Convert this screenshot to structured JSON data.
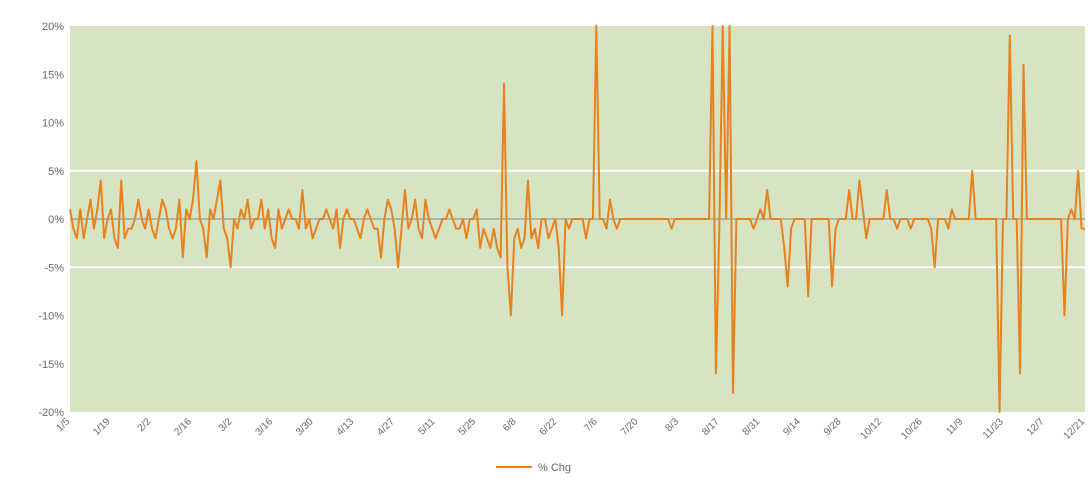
{
  "chart_data": {
    "type": "line",
    "title": "",
    "xlabel": "",
    "ylabel": "",
    "ylim": [
      -20,
      20
    ],
    "y_ticks": [
      {
        "value": 20,
        "label": "20%"
      },
      {
        "value": 15,
        "label": "15%"
      },
      {
        "value": 10,
        "label": "10%"
      },
      {
        "value": 5,
        "label": "5%"
      },
      {
        "value": 0,
        "label": "0%"
      },
      {
        "value": -5,
        "label": "-5%"
      },
      {
        "value": -10,
        "label": "-10%"
      },
      {
        "value": -15,
        "label": "-15%"
      },
      {
        "value": -20,
        "label": "-20%"
      }
    ],
    "x_ticks": [
      "1/5",
      "1/19",
      "2/2",
      "2/16",
      "3/2",
      "3/16",
      "3/30",
      "4/13",
      "4/27",
      "5/11",
      "5/25",
      "6/8",
      "6/22",
      "7/6",
      "7/20",
      "8/3",
      "8/17",
      "8/31",
      "9/14",
      "9/28",
      "10/12",
      "10/26",
      "11/9",
      "11/23",
      "12/7",
      "12/21"
    ],
    "grid_lines_at": [
      5,
      -5
    ],
    "background_color": "#d6e4c4",
    "series": [
      {
        "name": "% Chg",
        "color": "#e8821e",
        "values": [
          1,
          -1,
          -2,
          1,
          -2,
          0,
          2,
          -1,
          1,
          4,
          -2,
          0,
          1,
          -2,
          -3,
          4,
          -2,
          -1,
          -1,
          0,
          2,
          0,
          -1,
          1,
          -1,
          -2,
          0,
          2,
          1,
          -1,
          -2,
          -1,
          2,
          -4,
          1,
          0,
          2,
          6,
          0,
          -1,
          -4,
          1,
          0,
          2,
          4,
          -1,
          -2,
          -5,
          0,
          -1,
          1,
          0,
          2,
          -1,
          0,
          0,
          2,
          -1,
          1,
          -2,
          -3,
          1,
          -1,
          0,
          1,
          0,
          0,
          -1,
          3,
          -1,
          0,
          -2,
          -1,
          0,
          0,
          1,
          0,
          -1,
          1,
          -3,
          0,
          1,
          0,
          0,
          -1,
          -2,
          0,
          1,
          0,
          -1,
          -1,
          -4,
          0,
          2,
          1,
          -1,
          -5,
          -1,
          3,
          -1,
          0,
          2,
          -1,
          -2,
          2,
          0,
          -1,
          -2,
          -1,
          0,
          0,
          1,
          0,
          -1,
          -1,
          0,
          -2,
          0,
          0,
          1,
          -3,
          -1,
          -2,
          -3,
          -1,
          -3,
          -4,
          14,
          -5,
          -10,
          -2,
          -1,
          -3,
          -2,
          4,
          -2,
          -1,
          -3,
          0,
          0,
          -2,
          -1,
          0,
          -3,
          -10,
          0,
          -1,
          0,
          0,
          0,
          0,
          -2,
          0,
          0,
          20,
          0,
          0,
          -1,
          2,
          0,
          -1,
          0,
          0,
          0,
          0,
          0,
          0,
          0,
          0,
          0,
          0,
          0,
          0,
          0,
          0,
          0,
          -1,
          0,
          0,
          0,
          0,
          0,
          0,
          0,
          0,
          0,
          0,
          0,
          20,
          -16,
          -1,
          20,
          0,
          20,
          -18,
          0,
          0,
          0,
          0,
          0,
          -1,
          0,
          1,
          0,
          3,
          0,
          0,
          0,
          0,
          -3,
          -7,
          -1,
          0,
          0,
          0,
          0,
          -8,
          0,
          0,
          0,
          0,
          0,
          0,
          -7,
          -1,
          0,
          0,
          0,
          3,
          0,
          0,
          4,
          1,
          -2,
          0,
          0,
          0,
          0,
          0,
          3,
          0,
          0,
          -1,
          0,
          0,
          0,
          -1,
          0,
          0,
          0,
          0,
          0,
          -1,
          -5,
          0,
          0,
          0,
          -1,
          1,
          0,
          0,
          0,
          0,
          0,
          5,
          0,
          0,
          0,
          0,
          0,
          0,
          0,
          -20,
          0,
          0,
          19,
          0,
          0,
          -16,
          16,
          0,
          0,
          0,
          0,
          0,
          0,
          0,
          0,
          0,
          0,
          0,
          -10,
          0,
          1,
          0,
          5,
          -1,
          -1
        ]
      }
    ],
    "legend": {
      "position": "bottom",
      "label": "% Chg"
    }
  }
}
